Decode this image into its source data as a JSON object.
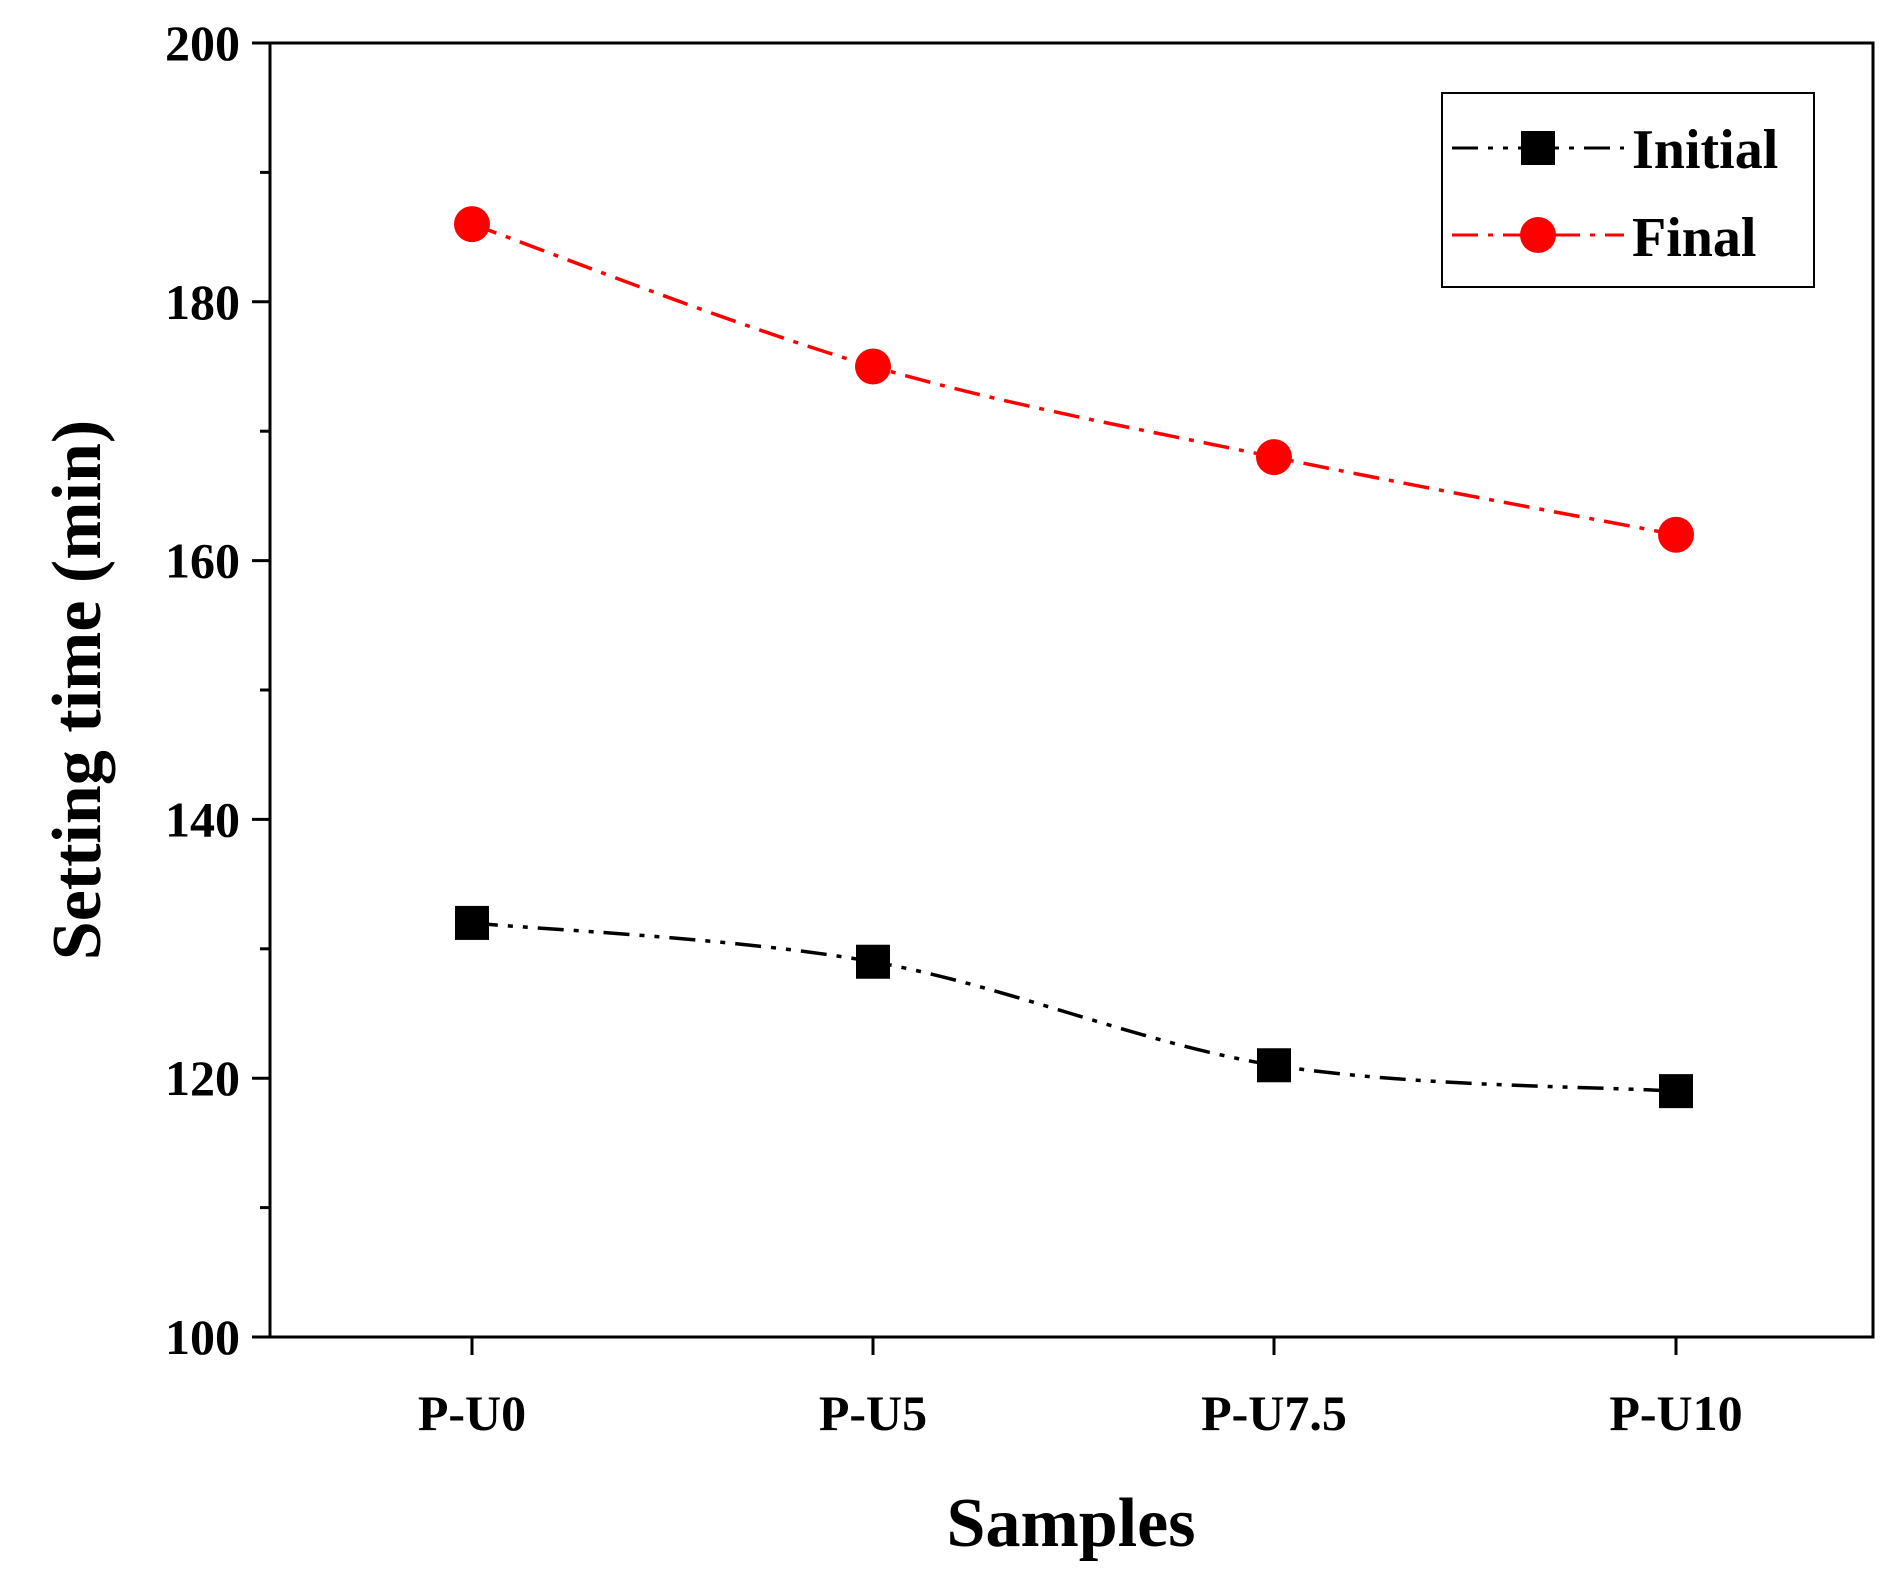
{
  "chart_data": {
    "type": "line",
    "title": "",
    "xlabel": "Samples",
    "ylabel": "Setting time (min)",
    "categories": [
      "P-U0",
      "P-U5",
      "P-U7.5",
      "P-U10"
    ],
    "ylim": [
      100,
      200
    ],
    "yticks": [
      100,
      120,
      140,
      160,
      180,
      200
    ],
    "y_minor_step": 10,
    "grid": false,
    "legend_position": "top-right",
    "series": [
      {
        "name": "Initial",
        "values": [
          132,
          129,
          121,
          119
        ],
        "color": "#000000",
        "marker": "square",
        "line_style": "dash-dot-dot"
      },
      {
        "name": "Final",
        "values": [
          186,
          175,
          168,
          162
        ],
        "color": "#ff0000",
        "marker": "circle",
        "line_style": "dash-dot"
      }
    ]
  }
}
